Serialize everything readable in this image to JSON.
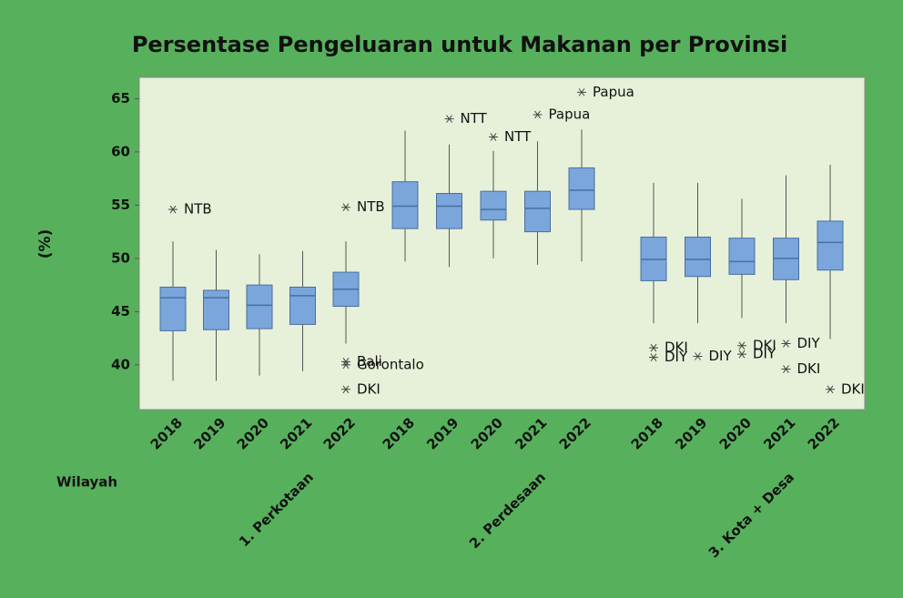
{
  "chart_data": {
    "type": "box",
    "title": "Persentase Pengeluaran untuk Makanan per Provinsi",
    "ylabel": "(%)",
    "xlabel": "Wilayah",
    "ylim": [
      35.8,
      67
    ],
    "yticks": [
      40,
      45,
      50,
      55,
      60,
      65
    ],
    "box_color": "#7aa6dc",
    "edge_color": "#4b6e9f",
    "plot_bg": "#e7f1da",
    "page_bg": "#57b15c",
    "groups": [
      {
        "name": "1. Perkotaan",
        "categories": [
          "2018",
          "2019",
          "2020",
          "2021",
          "2022"
        ],
        "boxes": [
          {
            "min": 38.5,
            "q1": 43.2,
            "median": 46.3,
            "q3": 47.3,
            "max": 51.6,
            "outliers": [
              {
                "value": 54.6,
                "label": "NTB"
              }
            ]
          },
          {
            "min": 38.5,
            "q1": 43.3,
            "median": 46.3,
            "q3": 47.0,
            "max": 50.8,
            "outliers": []
          },
          {
            "min": 39.0,
            "q1": 43.4,
            "median": 45.6,
            "q3": 47.5,
            "max": 50.4,
            "outliers": []
          },
          {
            "min": 39.4,
            "q1": 43.8,
            "median": 46.5,
            "q3": 47.3,
            "max": 50.7,
            "outliers": []
          },
          {
            "min": 42.0,
            "q1": 45.5,
            "median": 47.1,
            "q3": 48.7,
            "max": 51.6,
            "outliers": [
              {
                "value": 54.8,
                "label": "NTB"
              },
              {
                "value": 40.3,
                "label": "Bali"
              },
              {
                "value": 40.0,
                "label": "Gorontalo"
              },
              {
                "value": 37.7,
                "label": "DKI"
              }
            ]
          }
        ]
      },
      {
        "name": "2. Perdesaan",
        "categories": [
          "2018",
          "2019",
          "2020",
          "2021",
          "2022"
        ],
        "boxes": [
          {
            "min": 49.7,
            "q1": 52.8,
            "median": 54.9,
            "q3": 57.2,
            "max": 62.0,
            "outliers": []
          },
          {
            "min": 49.2,
            "q1": 52.8,
            "median": 54.9,
            "q3": 56.1,
            "max": 60.7,
            "outliers": [
              {
                "value": 63.1,
                "label": "NTT"
              }
            ]
          },
          {
            "min": 50.0,
            "q1": 53.6,
            "median": 54.6,
            "q3": 56.3,
            "max": 60.1,
            "outliers": [
              {
                "value": 61.4,
                "label": "NTT"
              }
            ]
          },
          {
            "min": 49.4,
            "q1": 52.5,
            "median": 54.7,
            "q3": 56.3,
            "max": 61.0,
            "outliers": [
              {
                "value": 63.5,
                "label": "Papua"
              }
            ]
          },
          {
            "min": 49.7,
            "q1": 54.6,
            "median": 56.4,
            "q3": 58.5,
            "max": 62.1,
            "outliers": [
              {
                "value": 65.6,
                "label": "Papua"
              }
            ]
          }
        ]
      },
      {
        "name": "3. Kota + Desa",
        "categories": [
          "2018",
          "2019",
          "2020",
          "2021",
          "2022"
        ],
        "boxes": [
          {
            "min": 43.9,
            "q1": 47.9,
            "median": 49.9,
            "q3": 52.0,
            "max": 57.1,
            "outliers": [
              {
                "value": 41.6,
                "label": "DKI"
              },
              {
                "value": 40.7,
                "label": "DIY"
              }
            ]
          },
          {
            "min": 43.9,
            "q1": 48.3,
            "median": 49.9,
            "q3": 52.0,
            "max": 57.1,
            "outliers": [
              {
                "value": 40.8,
                "label": "DIY"
              }
            ]
          },
          {
            "min": 44.4,
            "q1": 48.5,
            "median": 49.7,
            "q3": 51.9,
            "max": 55.6,
            "outliers": [
              {
                "value": 41.8,
                "label": "DKI"
              },
              {
                "value": 41.0,
                "label": "DIY"
              }
            ]
          },
          {
            "min": 43.9,
            "q1": 48.0,
            "median": 50.0,
            "q3": 51.9,
            "max": 57.8,
            "outliers": [
              {
                "value": 42.0,
                "label": "DIY"
              },
              {
                "value": 39.6,
                "label": "DKI"
              }
            ]
          },
          {
            "min": 42.4,
            "q1": 48.9,
            "median": 51.5,
            "q3": 53.5,
            "max": 58.8,
            "outliers": [
              {
                "value": 37.7,
                "label": "DKI"
              }
            ]
          }
        ]
      }
    ]
  }
}
